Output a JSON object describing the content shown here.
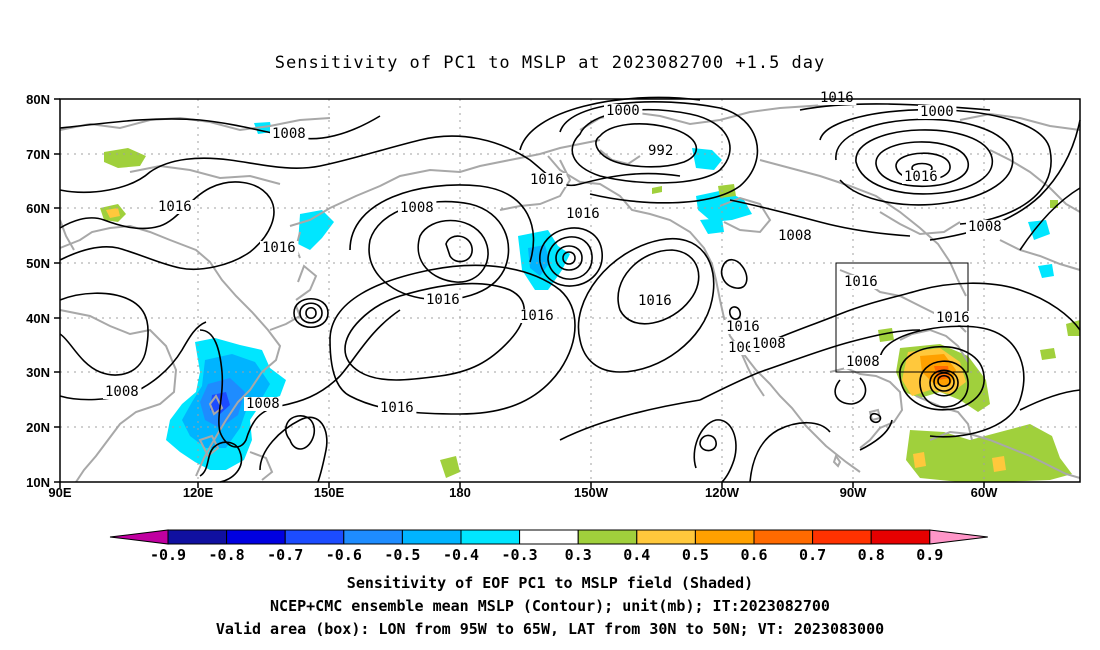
{
  "title": "Sensitivity of PC1 to MSLP at 2023082700 +1.5 day",
  "lat_labels": [
    "80N",
    "70N",
    "60N",
    "50N",
    "40N",
    "30N",
    "20N",
    "10N"
  ],
  "lon_labels": [
    "90E",
    "120E",
    "150E",
    "180",
    "150W",
    "120W",
    "90W",
    "60W"
  ],
  "contour_labels": [
    "1008",
    "1008",
    "1016",
    "1016",
    "1008",
    "1016",
    "1016",
    "1008",
    "1000",
    "1016",
    "1016",
    "1008",
    "1000",
    "992",
    "1016",
    "1008",
    "1016",
    "1016",
    "1016",
    "1008",
    "1008",
    "1016",
    "1016",
    "1016",
    "1008"
  ],
  "colorbar": {
    "labels": [
      "-0.9",
      "-0.8",
      "-0.7",
      "-0.6",
      "-0.5",
      "-0.4",
      "-0.3",
      "0.3",
      "0.4",
      "0.5",
      "0.6",
      "0.7",
      "0.8",
      "0.9"
    ],
    "colors": [
      "#c000a0",
      "#1010a0",
      "#0000e0",
      "#1c4cff",
      "#1e8cff",
      "#00b4ff",
      "#00e6ff",
      "#ffffff",
      "#a0d03c",
      "#ffc83c",
      "#ffa000",
      "#ff6a00",
      "#ff3200",
      "#e60000",
      "#ff96c8"
    ]
  },
  "footer": {
    "line1": "Sensitivity of EOF PC1 to MSLP field (Shaded)",
    "line2": "NCEP+CMC ensemble mean MSLP (Contour); unit(mb); IT:2023082700",
    "line3": "Valid area (box): LON from 95W to 65W, LAT from 30N to 50N; VT: 2023083000"
  }
}
